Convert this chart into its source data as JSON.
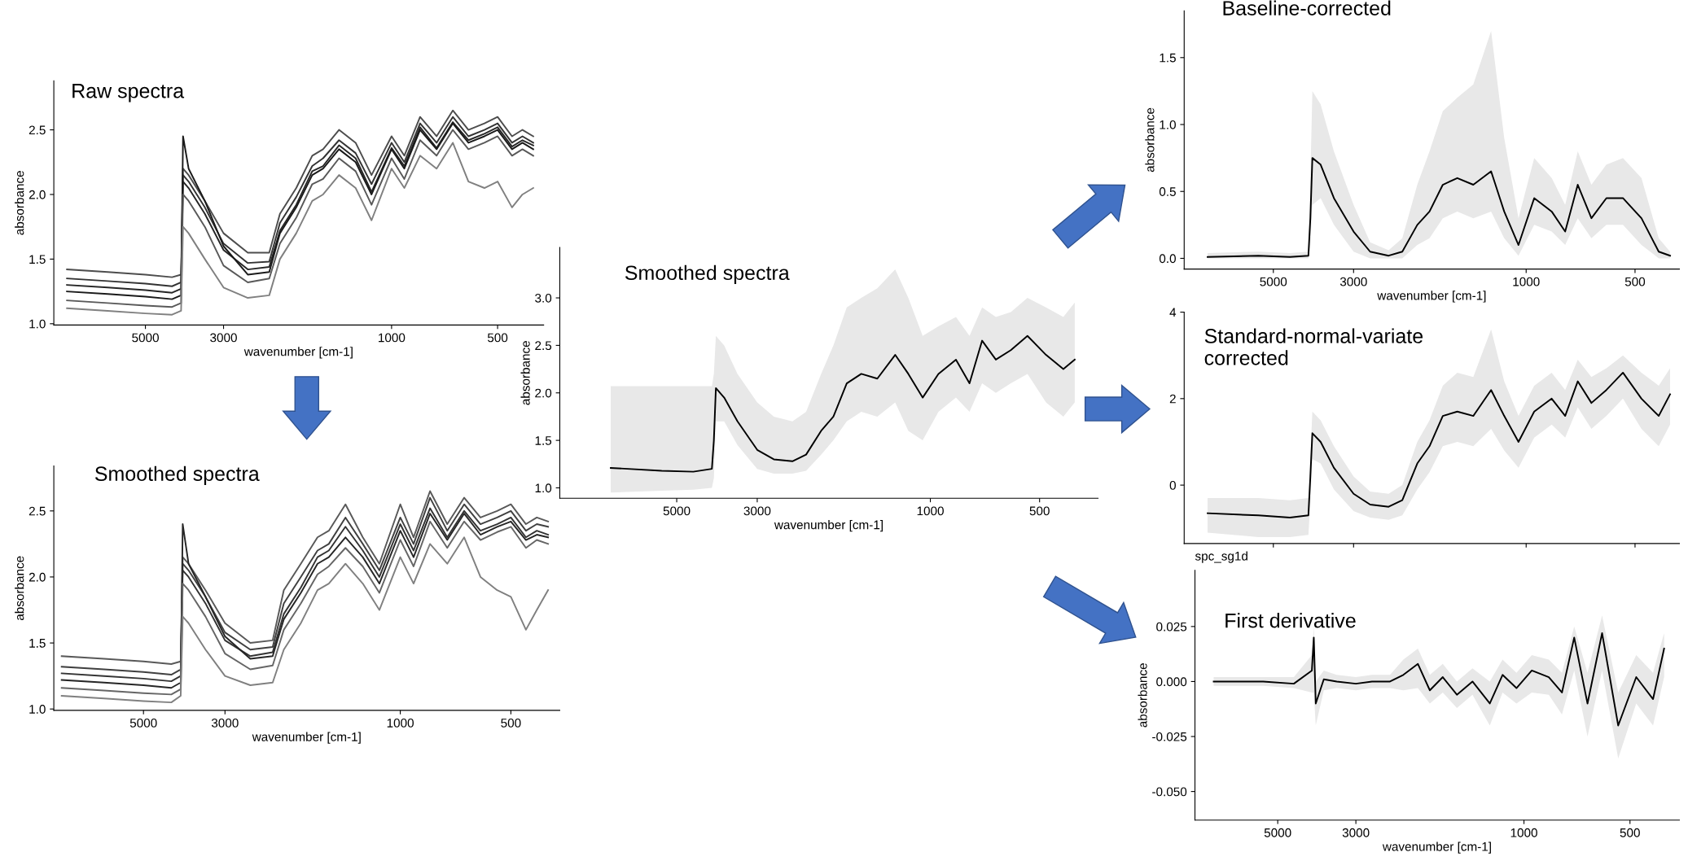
{
  "chart_data": [
    {
      "type": "line",
      "title": "Raw spectra",
      "xlabel": "wavenumber [cm-1]",
      "ylabel": "absorbance",
      "log": "x",
      "xlim": [
        9100,
        370
      ],
      "xticks": [
        5000,
        3000,
        1000,
        500
      ],
      "ylim": [
        0.99,
        2.88
      ],
      "yticks": [
        {
          "value": 1,
          "label": "1.0"
        },
        1.5,
        {
          "value": 2,
          "label": "2.0"
        },
        2.5
      ],
      "x": [
        8350,
        6400,
        5000,
        4200,
        3960,
        3910,
        3770,
        3390,
        3000,
        2560,
        2225,
        2075,
        1865,
        1680,
        1565,
        1410,
        1265,
        1140,
        1000,
        920,
        830,
        745,
        670,
        605,
        545,
        500,
        455,
        425,
        396
      ],
      "series": [
        {
          "color": "#4d4d4d",
          "values": [
            1.42,
            1.4,
            1.38,
            1.36,
            1.38,
            2.2,
            2.15,
            1.95,
            1.7,
            1.55,
            1.55,
            1.85,
            2.05,
            2.3,
            2.35,
            2.5,
            2.4,
            2.15,
            2.45,
            2.3,
            2.6,
            2.45,
            2.65,
            2.5,
            2.55,
            2.6,
            2.45,
            2.5,
            2.45
          ]
        },
        {
          "color": "#333333",
          "values": [
            1.35,
            1.33,
            1.31,
            1.29,
            1.32,
            2.15,
            2.1,
            1.9,
            1.62,
            1.47,
            1.48,
            1.78,
            1.98,
            2.22,
            2.28,
            2.42,
            2.32,
            2.08,
            2.4,
            2.25,
            2.55,
            2.4,
            2.6,
            2.45,
            2.5,
            2.55,
            2.4,
            2.45,
            2.4
          ]
        },
        {
          "color": "#262626",
          "values": [
            1.3,
            1.28,
            1.26,
            1.24,
            1.27,
            2.1,
            2.05,
            1.85,
            1.57,
            1.42,
            1.44,
            1.72,
            1.92,
            2.18,
            2.22,
            2.38,
            2.28,
            2.02,
            2.36,
            2.22,
            2.52,
            2.36,
            2.56,
            2.42,
            2.47,
            2.52,
            2.37,
            2.42,
            2.38
          ]
        },
        {
          "color": "#1a1a1a",
          "values": [
            1.25,
            1.23,
            1.21,
            1.19,
            1.22,
            2.45,
            2.2,
            1.95,
            1.6,
            1.38,
            1.4,
            1.7,
            1.9,
            2.15,
            2.2,
            2.35,
            2.25,
            2.0,
            2.35,
            2.2,
            2.5,
            2.35,
            2.55,
            2.4,
            2.45,
            2.5,
            2.35,
            2.4,
            2.35
          ]
        },
        {
          "color": "#595959",
          "values": [
            1.18,
            1.16,
            1.14,
            1.13,
            1.16,
            2.0,
            1.95,
            1.75,
            1.45,
            1.32,
            1.35,
            1.62,
            1.82,
            2.08,
            2.12,
            2.28,
            2.18,
            1.92,
            2.28,
            2.12,
            2.42,
            2.3,
            2.5,
            2.35,
            2.4,
            2.45,
            2.3,
            2.35,
            2.3
          ]
        },
        {
          "color": "#808080",
          "values": [
            1.12,
            1.1,
            1.08,
            1.07,
            1.1,
            1.75,
            1.7,
            1.5,
            1.28,
            1.2,
            1.22,
            1.5,
            1.7,
            1.95,
            2.0,
            2.15,
            2.05,
            1.8,
            2.2,
            2.05,
            2.3,
            2.2,
            2.4,
            2.1,
            2.05,
            2.1,
            1.9,
            2.0,
            2.05
          ]
        }
      ]
    },
    {
      "type": "line",
      "title": "Smoothed spectra",
      "xlabel": "wavenumber [cm-1]",
      "ylabel": "absorbance",
      "log": "x",
      "xlim": [
        8770,
        368
      ],
      "xticks": [
        5000,
        3000,
        1000,
        500
      ],
      "ylim": [
        0.99,
        2.84
      ],
      "yticks": [
        {
          "value": 1,
          "label": "1.0"
        },
        1.5,
        {
          "value": 2,
          "label": "2.0"
        },
        2.5
      ],
      "x": [
        8350,
        6400,
        5000,
        4200,
        3960,
        3910,
        3770,
        3390,
        3000,
        2560,
        2225,
        2075,
        1865,
        1680,
        1565,
        1410,
        1265,
        1140,
        1000,
        920,
        830,
        745,
        670,
        605,
        545,
        500,
        455,
        425,
        396
      ],
      "series": [
        {
          "color": "#595959",
          "values": [
            1.4,
            1.38,
            1.36,
            1.34,
            1.36,
            2.15,
            2.1,
            1.9,
            1.65,
            1.5,
            1.52,
            1.9,
            2.1,
            2.3,
            2.35,
            2.55,
            2.3,
            2.1,
            2.55,
            2.3,
            2.65,
            2.4,
            2.6,
            2.45,
            2.5,
            2.55,
            2.4,
            2.45,
            2.42
          ]
        },
        {
          "color": "#404040",
          "values": [
            1.32,
            1.3,
            1.28,
            1.26,
            1.3,
            2.1,
            2.05,
            1.85,
            1.58,
            1.45,
            1.47,
            1.8,
            2.0,
            2.2,
            2.25,
            2.45,
            2.25,
            2.05,
            2.45,
            2.25,
            2.6,
            2.35,
            2.55,
            2.4,
            2.45,
            2.5,
            2.35,
            2.4,
            2.38
          ]
        },
        {
          "color": "#333333",
          "values": [
            1.27,
            1.25,
            1.23,
            1.21,
            1.25,
            2.05,
            2.0,
            1.8,
            1.52,
            1.4,
            1.43,
            1.72,
            1.92,
            2.15,
            2.2,
            2.38,
            2.2,
            2.0,
            2.4,
            2.2,
            2.52,
            2.3,
            2.5,
            2.35,
            2.4,
            2.45,
            2.3,
            2.35,
            2.32
          ]
        },
        {
          "color": "#262626",
          "values": [
            1.22,
            1.2,
            1.18,
            1.16,
            1.2,
            2.4,
            2.1,
            1.85,
            1.55,
            1.38,
            1.4,
            1.68,
            1.88,
            2.1,
            2.15,
            2.3,
            2.15,
            1.95,
            2.35,
            2.15,
            2.48,
            2.28,
            2.48,
            2.32,
            2.38,
            2.42,
            2.28,
            2.32,
            2.3
          ]
        },
        {
          "color": "#666666",
          "values": [
            1.16,
            1.14,
            1.12,
            1.11,
            1.15,
            1.95,
            1.9,
            1.7,
            1.42,
            1.3,
            1.33,
            1.6,
            1.8,
            2.02,
            2.08,
            2.22,
            2.08,
            1.88,
            2.28,
            2.08,
            2.42,
            2.22,
            2.42,
            2.28,
            2.34,
            2.38,
            2.22,
            2.28,
            2.25
          ]
        },
        {
          "color": "#808080",
          "values": [
            1.1,
            1.08,
            1.06,
            1.05,
            1.1,
            1.7,
            1.65,
            1.45,
            1.25,
            1.18,
            1.2,
            1.45,
            1.65,
            1.9,
            1.95,
            2.1,
            1.95,
            1.75,
            2.15,
            1.95,
            2.25,
            2.1,
            2.3,
            2.0,
            1.9,
            1.85,
            1.6,
            1.75,
            1.9
          ]
        }
      ]
    },
    {
      "type": "line",
      "title": "Smoothed spectra",
      "xlabel": "wavenumber [cm-1]",
      "ylabel": "absorbance",
      "log": "x",
      "xlim": [
        10500,
        345
      ],
      "xticks": [
        5000,
        3000,
        1000,
        500
      ],
      "ylim": [
        0.89,
        3.53
      ],
      "yticks": [
        {
          "value": 1,
          "label": "1.0"
        },
        1.5,
        {
          "value": 2,
          "label": "2.0"
        },
        2.5,
        {
          "value": 3,
          "label": "3.0"
        }
      ],
      "x": [
        7600,
        5500,
        4500,
        4000,
        3950,
        3900,
        3700,
        3400,
        3000,
        2700,
        2400,
        2200,
        2000,
        1850,
        1700,
        1550,
        1400,
        1250,
        1150,
        1050,
        950,
        850,
        780,
        720,
        660,
        600,
        540,
        480,
        430,
        400
      ],
      "series": [
        {
          "color": "#000000",
          "values": [
            1.21,
            1.18,
            1.17,
            1.2,
            1.5,
            2.05,
            1.95,
            1.7,
            1.4,
            1.3,
            1.28,
            1.35,
            1.6,
            1.75,
            2.1,
            2.2,
            2.15,
            2.4,
            2.2,
            1.95,
            2.2,
            2.35,
            2.1,
            2.55,
            2.35,
            2.45,
            2.6,
            2.4,
            2.25,
            2.35
          ],
          "lower": [
            0.95,
            0.97,
            0.98,
            1.0,
            1.1,
            1.7,
            1.7,
            1.45,
            1.2,
            1.15,
            1.15,
            1.18,
            1.35,
            1.5,
            1.7,
            1.8,
            1.75,
            1.9,
            1.6,
            1.5,
            1.8,
            1.95,
            1.8,
            2.1,
            2.0,
            2.1,
            2.2,
            1.9,
            1.75,
            1.9
          ],
          "upper": [
            2.07,
            2.07,
            2.07,
            2.07,
            2.2,
            2.6,
            2.5,
            2.2,
            1.9,
            1.75,
            1.7,
            1.8,
            2.2,
            2.5,
            2.9,
            3.0,
            3.1,
            3.3,
            3.0,
            2.6,
            2.7,
            2.8,
            2.6,
            2.9,
            2.8,
            2.85,
            3.0,
            2.9,
            2.8,
            2.95
          ]
        }
      ]
    },
    {
      "type": "line",
      "title": "Baseline-corrected",
      "xlabel": "wavenumber [cm-1]",
      "ylabel": "absorbance",
      "log": "x",
      "xlim": [
        8820,
        377
      ],
      "xticks": [
        5000,
        3000,
        1000,
        500
      ],
      "ylim": [
        -0.08,
        1.85
      ],
      "yticks": [
        {
          "value": 0,
          "label": "0.0"
        },
        0.5,
        {
          "value": 1,
          "label": "1.0"
        },
        1.5
      ],
      "x": [
        7600,
        5500,
        4500,
        4000,
        3950,
        3900,
        3700,
        3400,
        3000,
        2700,
        2400,
        2200,
        2000,
        1850,
        1700,
        1550,
        1400,
        1250,
        1150,
        1050,
        950,
        850,
        780,
        720,
        660,
        600,
        540,
        480,
        430,
        400
      ],
      "series": [
        {
          "color": "#000000",
          "values": [
            0.01,
            0.02,
            0.01,
            0.02,
            0.3,
            0.75,
            0.7,
            0.45,
            0.2,
            0.05,
            0.02,
            0.05,
            0.25,
            0.35,
            0.55,
            0.6,
            0.55,
            0.65,
            0.35,
            0.1,
            0.45,
            0.35,
            0.2,
            0.55,
            0.3,
            0.45,
            0.45,
            0.3,
            0.05,
            0.02
          ],
          "lower": [
            0,
            0,
            0,
            0,
            0.1,
            0.4,
            0.45,
            0.25,
            0.05,
            0,
            0,
            0,
            0.1,
            0.15,
            0.3,
            0.35,
            0.3,
            0.35,
            0.15,
            0.02,
            0.25,
            0.2,
            0.1,
            0.3,
            0.15,
            0.25,
            0.25,
            0.1,
            0,
            0
          ],
          "upper": [
            0.04,
            0.05,
            0.04,
            0.05,
            0.6,
            1.25,
            1.15,
            0.8,
            0.4,
            0.12,
            0.06,
            0.15,
            0.55,
            0.8,
            1.1,
            1.2,
            1.3,
            1.7,
            0.9,
            0.3,
            0.75,
            0.6,
            0.4,
            0.8,
            0.55,
            0.7,
            0.75,
            0.6,
            0.15,
            0.05
          ]
        }
      ]
    },
    {
      "type": "line",
      "title": "Standard-normal-variate\ncorrected",
      "log": "x",
      "xlim": [
        8820,
        377
      ],
      "xticks": [
        {
          "value": 5000,
          "label": null
        },
        {
          "value": 3000,
          "label": null
        },
        {
          "value": 1000,
          "label": null
        },
        {
          "value": 500,
          "label": null
        }
      ],
      "ylim": [
        -1.35,
        4.0
      ],
      "yticks": [
        0,
        2,
        4
      ],
      "tick_labels": "y",
      "x": [
        7600,
        5500,
        4500,
        4000,
        3950,
        3900,
        3700,
        3400,
        3000,
        2700,
        2400,
        2200,
        2000,
        1850,
        1700,
        1550,
        1400,
        1250,
        1150,
        1050,
        950,
        850,
        780,
        720,
        660,
        600,
        540,
        480,
        430,
        400
      ],
      "series": [
        {
          "color": "#000000",
          "values": [
            -0.65,
            -0.7,
            -0.75,
            -0.7,
            0.2,
            1.2,
            1.0,
            0.4,
            -0.2,
            -0.45,
            -0.5,
            -0.35,
            0.5,
            0.9,
            1.6,
            1.7,
            1.6,
            2.2,
            1.6,
            1.0,
            1.7,
            2.0,
            1.6,
            2.4,
            1.9,
            2.2,
            2.6,
            2.0,
            1.6,
            2.1
          ],
          "lower": [
            -1.1,
            -1.2,
            -1.2,
            -1.15,
            -0.4,
            0.6,
            0.5,
            -0.1,
            -0.6,
            -0.75,
            -0.8,
            -0.7,
            -0.1,
            0.3,
            0.9,
            1.0,
            0.9,
            1.3,
            0.8,
            0.4,
            1.1,
            1.4,
            1.1,
            1.8,
            1.3,
            1.6,
            2.0,
            1.3,
            0.9,
            1.4
          ],
          "upper": [
            -0.3,
            -0.3,
            -0.35,
            -0.3,
            0.7,
            1.7,
            1.5,
            0.9,
            0.2,
            -0.15,
            -0.2,
            0.0,
            1.0,
            1.5,
            2.3,
            2.6,
            2.5,
            3.6,
            2.4,
            1.6,
            2.3,
            2.6,
            2.2,
            2.9,
            2.5,
            2.7,
            3.0,
            2.6,
            2.3,
            2.7
          ]
        }
      ]
    },
    {
      "type": "line",
      "title": "First derivative",
      "xlabel": "wavenumber [cm-1]",
      "ylabel": "absorbance",
      "annotations": [
        "spc_sg1d"
      ],
      "log": "x",
      "xlim": [
        8590,
        362
      ],
      "xticks": [
        5000,
        3000,
        1000,
        500
      ],
      "ylim": [
        -0.063,
        0.0505
      ],
      "yticks": [
        {
          "value": 0.025,
          "label": "0.025"
        },
        {
          "value": 0,
          "label": "0.000"
        },
        {
          "value": -0.025,
          "label": "-0.025"
        },
        {
          "value": -0.05,
          "label": "-0.050"
        }
      ],
      "x": [
        7600,
        5500,
        4500,
        4000,
        3950,
        3900,
        3700,
        3400,
        3000,
        2700,
        2400,
        2200,
        2000,
        1850,
        1700,
        1550,
        1400,
        1250,
        1150,
        1050,
        950,
        850,
        780,
        720,
        660,
        600,
        540,
        480,
        430,
        400
      ],
      "series": [
        {
          "color": "#000000",
          "values": [
            0.0,
            0.0,
            -0.001,
            0.005,
            0.02,
            -0.01,
            0.001,
            0.0,
            -0.001,
            0.0,
            0.0,
            0.003,
            0.008,
            -0.004,
            0.002,
            -0.006,
            0.0,
            -0.01,
            0.003,
            -0.003,
            0.005,
            0.002,
            -0.005,
            0.02,
            -0.01,
            0.022,
            -0.02,
            0.002,
            -0.008,
            0.015
          ],
          "lower": [
            -0.002,
            -0.002,
            -0.003,
            -0.005,
            -0.005,
            -0.02,
            -0.004,
            -0.003,
            -0.004,
            -0.003,
            -0.003,
            -0.004,
            -0.003,
            -0.01,
            -0.005,
            -0.012,
            -0.006,
            -0.02,
            -0.005,
            -0.01,
            -0.005,
            -0.006,
            -0.015,
            0.005,
            -0.025,
            0.005,
            -0.035,
            -0.01,
            -0.02,
            0.002
          ],
          "upper": [
            0.002,
            0.002,
            0.002,
            0.012,
            0.025,
            0.0,
            0.005,
            0.003,
            0.002,
            0.003,
            0.003,
            0.01,
            0.015,
            0.003,
            0.008,
            0.0,
            0.006,
            0.0,
            0.01,
            0.004,
            0.012,
            0.01,
            0.004,
            0.025,
            0.004,
            0.03,
            -0.005,
            0.012,
            0.004,
            0.022
          ]
        }
      ]
    }
  ]
}
